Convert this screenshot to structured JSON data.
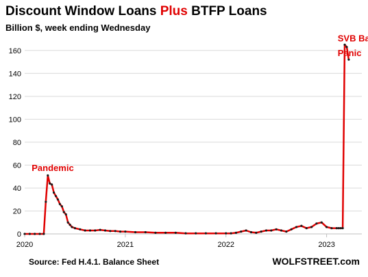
{
  "header": {
    "title_part1": "Discount Window Loans ",
    "title_part2": "Plus",
    "title_part3": " BTFP Loans",
    "subtitle": "Billion $, week ending Wednesday"
  },
  "footer": {
    "source": "Source: Fed H.4.1. Balance Sheet",
    "brand": "WOLFSTREET.com"
  },
  "colors": {
    "line": "#e00000",
    "marker": "#1a1a1a",
    "grid": "#d9d9d9",
    "title_highlight": "#e00000"
  },
  "chart_data": {
    "type": "line",
    "xlim": [
      2020.0,
      2023.35
    ],
    "ylim": [
      0,
      170
    ],
    "yticks": [
      0,
      20,
      40,
      60,
      80,
      100,
      120,
      140,
      160
    ],
    "xticks": [
      {
        "value": 2020,
        "label": "2020"
      },
      {
        "value": 2021,
        "label": "2021"
      },
      {
        "value": 2022,
        "label": "2022"
      },
      {
        "value": 2023,
        "label": "2023"
      }
    ],
    "grid": "horizontal",
    "annotations": [
      {
        "text": "Pandemic",
        "x": 2020.07,
        "y": 55
      },
      {
        "text": "SVB Bank",
        "x": 2023.11,
        "y": 168
      },
      {
        "text": "Panic",
        "x": 2023.11,
        "y": 155
      }
    ],
    "series": [
      {
        "x": [
          2020.0,
          2020.05,
          2020.1,
          2020.15,
          2020.19,
          2020.21,
          2020.23,
          2020.25,
          2020.27,
          2020.29,
          2020.31,
          2020.33,
          2020.35,
          2020.37,
          2020.39,
          2020.41,
          2020.43,
          2020.45,
          2020.47,
          2020.5,
          2020.55,
          2020.6,
          2020.65,
          2020.7,
          2020.75,
          2020.8,
          2020.85,
          2020.9,
          2020.95,
          2021.0,
          2021.1,
          2021.2,
          2021.3,
          2021.4,
          2021.5,
          2021.6,
          2021.7,
          2021.8,
          2021.9,
          2022.0,
          2022.05,
          2022.1,
          2022.15,
          2022.2,
          2022.25,
          2022.3,
          2022.35,
          2022.4,
          2022.45,
          2022.5,
          2022.55,
          2022.6,
          2022.65,
          2022.7,
          2022.75,
          2022.8,
          2022.85,
          2022.9,
          2022.95,
          2023.0,
          2023.05,
          2023.1,
          2023.12,
          2023.14,
          2023.16,
          2023.18,
          2023.2,
          2023.22
        ],
        "y": [
          0,
          0,
          0,
          0,
          0,
          28,
          51,
          44,
          43,
          36,
          33,
          30,
          26,
          24,
          19,
          17,
          10,
          8,
          6,
          5,
          4,
          3,
          3,
          3,
          3.5,
          3,
          2.5,
          2.5,
          2,
          2,
          1.5,
          1.5,
          1,
          1,
          1,
          0.5,
          0.5,
          0.5,
          0.5,
          0.5,
          0.5,
          1,
          2,
          3,
          1.5,
          1,
          2,
          3,
          3,
          4,
          3,
          2,
          4,
          6,
          7,
          5,
          6,
          9,
          10,
          6,
          5,
          5,
          5,
          5,
          5,
          165,
          163,
          152
        ]
      }
    ]
  }
}
